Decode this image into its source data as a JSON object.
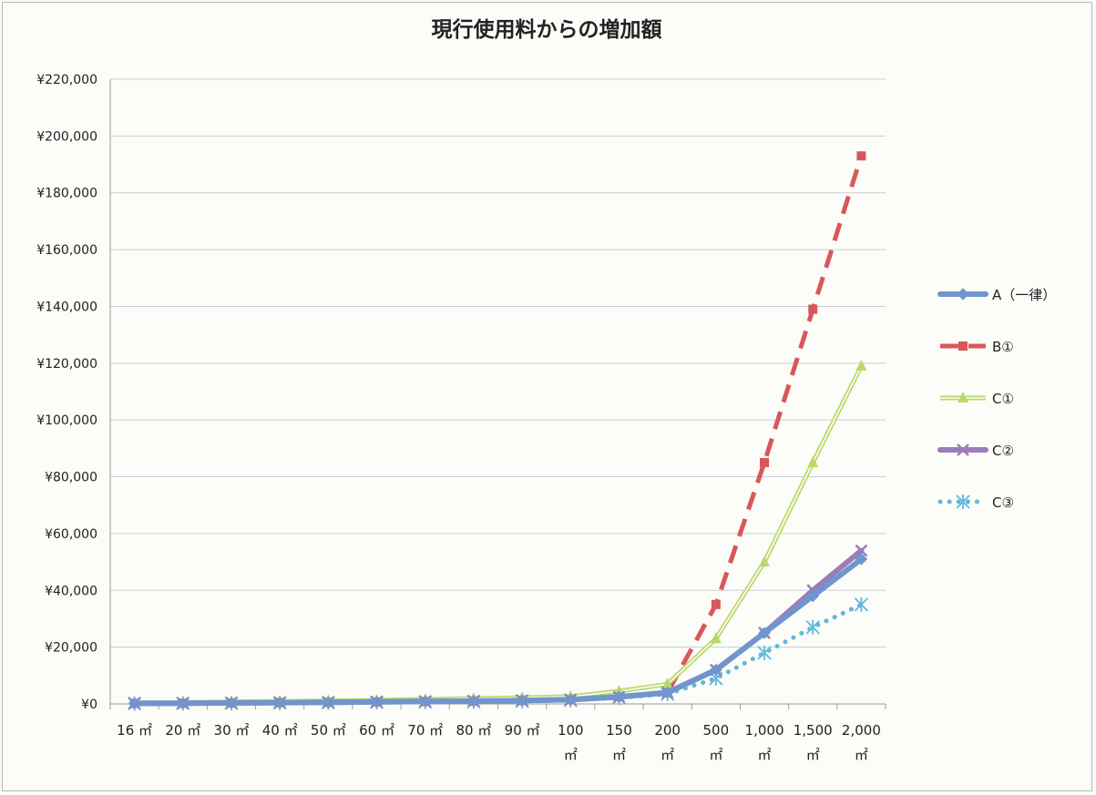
{
  "chart_data": {
    "type": "line",
    "title": "現行使用料からの増加額",
    "xlabel": "",
    "ylabel": "",
    "categories": [
      [
        "16 ㎡"
      ],
      [
        "20 ㎡"
      ],
      [
        "30 ㎡"
      ],
      [
        "40 ㎡"
      ],
      [
        "50 ㎡"
      ],
      [
        "60 ㎡"
      ],
      [
        "70 ㎡"
      ],
      [
        "80 ㎡"
      ],
      [
        "90 ㎡"
      ],
      [
        "100",
        "㎡"
      ],
      [
        "150",
        "㎡"
      ],
      [
        "200",
        "㎡"
      ],
      [
        "500",
        "㎡"
      ],
      [
        "1,000",
        "㎡"
      ],
      [
        "1,500",
        "㎡"
      ],
      [
        "2,000",
        "㎡"
      ]
    ],
    "ylim": [
      0,
      220000
    ],
    "yticks": [
      0,
      20000,
      40000,
      60000,
      80000,
      100000,
      120000,
      140000,
      160000,
      180000,
      200000,
      220000
    ],
    "ytick_labels": [
      "¥0",
      "¥20,000",
      "¥40,000",
      "¥60,000",
      "¥80,000",
      "¥100,000",
      "¥120,000",
      "¥140,000",
      "¥160,000",
      "¥180,000",
      "¥200,000",
      "¥220,000"
    ],
    "grid": true,
    "legend_position": "right",
    "series": [
      {
        "name": "A（一律）",
        "color": "#6f96cc",
        "style": "thick-solid",
        "marker": "diamond",
        "values": [
          200,
          250,
          350,
          450,
          550,
          700,
          850,
          1000,
          1200,
          1500,
          2500,
          4000,
          12000,
          25000,
          38000,
          51000
        ]
      },
      {
        "name": "B①",
        "color": "#d9575a",
        "style": "dashed",
        "marker": "square",
        "values": [
          200,
          250,
          350,
          450,
          550,
          700,
          850,
          1000,
          1200,
          1500,
          2500,
          4000,
          35000,
          85000,
          139000,
          193000
        ]
      },
      {
        "name": "C①",
        "color": "#b9d86a",
        "style": "double",
        "marker": "triangle",
        "values": [
          400,
          500,
          700,
          900,
          1100,
          1300,
          1600,
          1900,
          2200,
          2600,
          4500,
          7000,
          23000,
          50000,
          85000,
          119000
        ]
      },
      {
        "name": "C②",
        "color": "#9c7cb8",
        "style": "thick-solid",
        "marker": "x",
        "values": [
          200,
          250,
          350,
          450,
          550,
          700,
          850,
          1000,
          1200,
          1500,
          2500,
          4000,
          12000,
          25000,
          40000,
          54000
        ]
      },
      {
        "name": "C③",
        "color": "#5fb9dc",
        "style": "dotted",
        "marker": "star",
        "values": [
          150,
          200,
          280,
          360,
          450,
          550,
          700,
          850,
          1000,
          1300,
          2200,
          3500,
          9000,
          18000,
          27000,
          35000
        ]
      }
    ]
  }
}
